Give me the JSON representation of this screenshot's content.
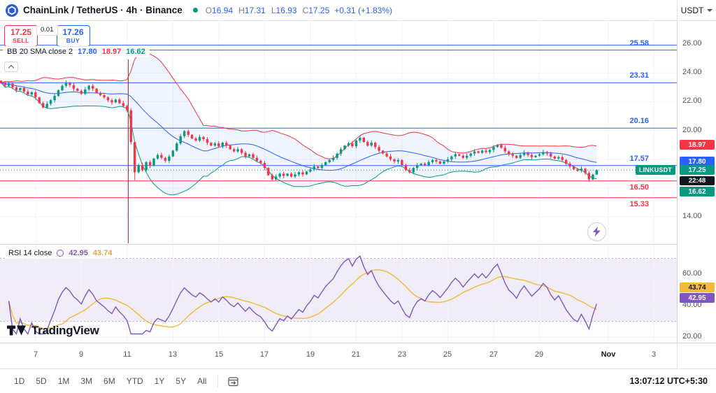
{
  "topbar": {
    "symbol_title": "ChainLink / TetherUS · 4h · Binance",
    "ohlc": {
      "o_label": "O",
      "o": "16.94",
      "h_label": "H",
      "h": "17.31",
      "l_label": "L",
      "l": "16.93",
      "c_label": "C",
      "c": "17.25",
      "change": "+0.31 (+1.83%)"
    },
    "currency": "USDT"
  },
  "trade_widget": {
    "sell_price": "17.25",
    "sell_label": "SELL",
    "spread": "0.01",
    "buy_price": "17.26",
    "buy_label": "BUY"
  },
  "indicator_bb": {
    "title": "BB 20 SMA close 2",
    "basis": "17.80",
    "upper": "18.97",
    "lower": "16.62"
  },
  "price_axis": {
    "ticks": [
      {
        "price": 26,
        "label": "26.00"
      },
      {
        "price": 24,
        "label": "24.00"
      },
      {
        "price": 22,
        "label": "22.00"
      },
      {
        "price": 20,
        "label": "20.00"
      },
      {
        "price": 14,
        "label": "14.00"
      }
    ],
    "badges": {
      "bb_upper": "18.97",
      "bb_basis": "17.80",
      "last_price": "17.25",
      "countdown": "22:48",
      "bb_lower": "16.62"
    },
    "symbol_tag": "LINKUSDT"
  },
  "rsi": {
    "title": "RSI 14 close",
    "value": "42.95",
    "ma_value": "43.74",
    "ticks": [
      {
        "value": 60,
        "label": "60.00"
      },
      {
        "value": 40,
        "label": "40.00"
      },
      {
        "value": 20,
        "label": "20.00"
      }
    ]
  },
  "branding": {
    "logo_text": "TradingView"
  },
  "time_axis": {
    "ticks": [
      {
        "day": 7,
        "label": "7"
      },
      {
        "day": 9,
        "label": "9"
      },
      {
        "day": 11,
        "label": "11"
      },
      {
        "day": 13,
        "label": "13"
      },
      {
        "day": 15,
        "label": "15"
      },
      {
        "day": 17,
        "label": "17"
      },
      {
        "day": 19,
        "label": "19"
      },
      {
        "day": 21,
        "label": "21"
      },
      {
        "day": 23,
        "label": "23"
      },
      {
        "day": 25,
        "label": "25"
      },
      {
        "day": 27,
        "label": "27"
      },
      {
        "day": 29,
        "label": "29"
      },
      {
        "day": 32,
        "label": "Nov",
        "bold": true
      },
      {
        "day": 34,
        "label": "3"
      }
    ]
  },
  "toolbar": {
    "ranges": [
      "1D",
      "5D",
      "1M",
      "3M",
      "6M",
      "YTD",
      "1Y",
      "5Y",
      "All"
    ],
    "clock": "13:07:12 UTC+5:30"
  },
  "colors": {
    "blue": "#2962FF",
    "red": "#F23645",
    "green": "#089981",
    "purple": "#7E57C2",
    "yellow": "#F2B93B",
    "bb_fill": "rgba(41,98,255,0.07)",
    "event_line": "#A02128",
    "grid": "#F0F3FA",
    "axis_text": "#50535E",
    "countdown_bg": "#131722"
  },
  "chart_data": {
    "type": "candlestick",
    "symbol": "LINKUSDT",
    "interval": "4h",
    "exchange": "Binance",
    "x_domain": [
      5.45,
      35.0
    ],
    "y_domain": [
      12.07,
      27.6
    ],
    "start_day": 5.5,
    "step": 0.1666667,
    "first_open": 23.45,
    "last_price": 17.25,
    "last_candle": {
      "open": 16.94,
      "high": 17.31,
      "low": 16.93,
      "close": 17.25
    },
    "event_day": 11.05,
    "bb_period": 20,
    "bb_mult": 2,
    "grid_prices": [
      26,
      24,
      22,
      20,
      18,
      16,
      14
    ],
    "levels": [
      {
        "price": 25.92,
        "color": "#2962FF",
        "label": "",
        "label_pos": "above"
      },
      {
        "price": 25.58,
        "color": "#2962FF",
        "label": "25.58",
        "label_pos": "above"
      },
      {
        "price": 23.31,
        "color": "#2962FF",
        "label": "23.31",
        "label_pos": "above"
      },
      {
        "price": 20.16,
        "color": "#2962FF",
        "label": "20.16",
        "label_pos": "above"
      },
      {
        "price": 17.57,
        "color": "#2962FF",
        "label": "17.57",
        "label_pos": "above"
      },
      {
        "price": 16.5,
        "color": "#F23645",
        "label": "16.50",
        "label_pos": "below"
      },
      {
        "price": 15.33,
        "color": "#F23645",
        "label": "15.33",
        "label_pos": "below"
      }
    ],
    "closes": [
      23.3,
      23.1,
      23.25,
      23.0,
      22.8,
      22.95,
      22.7,
      22.5,
      22.65,
      22.3,
      21.9,
      21.6,
      21.85,
      22.1,
      22.4,
      22.8,
      23.1,
      23.3,
      23.15,
      22.9,
      22.75,
      22.55,
      22.85,
      23.1,
      22.9,
      22.6,
      22.45,
      22.3,
      22.1,
      21.95,
      22.15,
      21.9,
      21.7,
      21.4,
      19.2,
      17.1,
      17.6,
      17.25,
      17.8,
      17.55,
      18.05,
      18.3,
      18.1,
      17.9,
      18.2,
      18.6,
      19.1,
      19.6,
      19.95,
      19.7,
      19.45,
      19.3,
      19.55,
      19.4,
      19.15,
      18.95,
      19.1,
      18.9,
      19.15,
      18.95,
      18.7,
      18.55,
      18.7,
      18.45,
      18.2,
      18.35,
      18.1,
      17.9,
      17.75,
      17.4,
      16.9,
      16.6,
      16.8,
      17.0,
      16.85,
      17.0,
      16.8,
      16.95,
      17.1,
      16.95,
      17.15,
      17.3,
      17.5,
      17.4,
      17.6,
      17.8,
      17.95,
      18.1,
      18.4,
      18.7,
      18.95,
      19.1,
      18.9,
      19.3,
      19.5,
      19.2,
      18.95,
      19.15,
      18.85,
      18.6,
      18.4,
      18.2,
      18.0,
      17.85,
      17.95,
      17.6,
      17.25,
      17.1,
      17.4,
      17.6,
      17.7,
      17.6,
      17.8,
      17.95,
      17.85,
      17.7,
      17.85,
      18.0,
      18.2,
      18.35,
      18.25,
      18.1,
      18.25,
      18.4,
      18.55,
      18.45,
      18.6,
      18.5,
      18.65,
      18.85,
      19.0,
      18.8,
      18.55,
      18.35,
      18.25,
      18.1,
      18.3,
      18.45,
      18.3,
      18.15,
      18.25,
      18.35,
      18.5,
      18.4,
      18.2,
      18.05,
      18.15,
      17.95,
      17.7,
      17.5,
      17.3,
      17.2,
      17.35,
      17.05,
      16.6,
      16.94,
      17.25
    ],
    "wick_overrides": {
      "34": {
        "high": 21.55
      },
      "35": {
        "low": 16.55
      },
      "156": {
        "high": 17.31,
        "low": 16.93
      }
    },
    "rsi": {
      "period": 14,
      "ma_period": 14,
      "overbought": 70,
      "oversold": 30,
      "last": 42.95,
      "ma_last": 43.74
    }
  }
}
